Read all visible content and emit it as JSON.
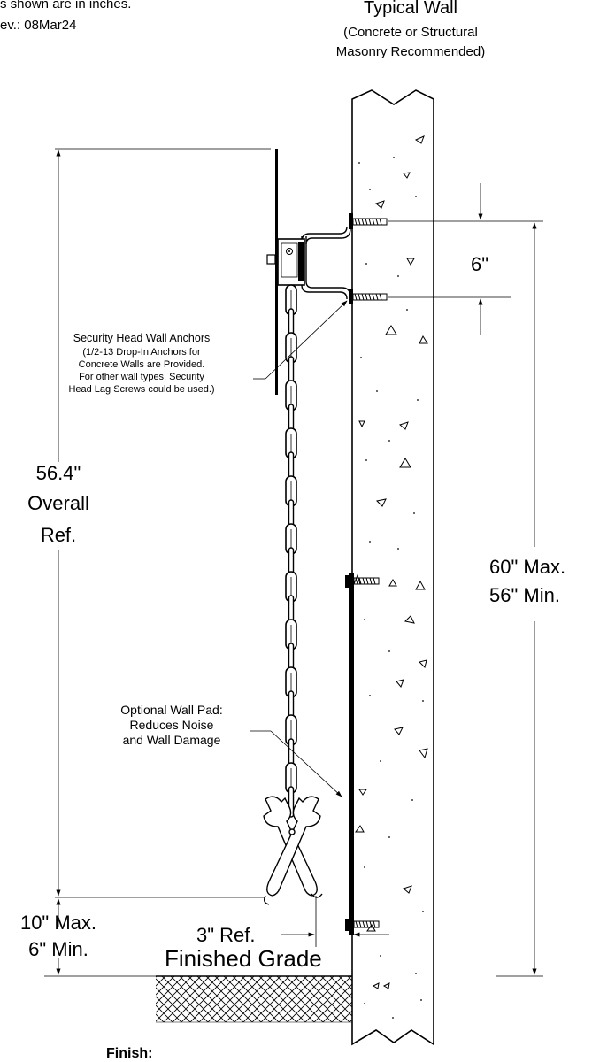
{
  "header": {
    "units_note": "s shown are in inches.",
    "revision": "ev.: 08Mar24"
  },
  "wall": {
    "title": "Typical Wall",
    "subtitle_line1": "(Concrete or Structural",
    "subtitle_line2": "Masonry Recommended)"
  },
  "dimensions": {
    "anchor_spacing": "6\"",
    "overall_value": "56.4\"",
    "overall_word": "Overall",
    "overall_ref": "Ref.",
    "mount_max": "60\" Max.",
    "mount_min": "56\" Min.",
    "ground_max": "10\" Max.",
    "ground_min": "6\" Min.",
    "offset": "3\" Ref."
  },
  "callouts": {
    "anchors_title": "Security Head Wall Anchors",
    "anchors_lines": [
      "(1/2-13 Drop-In Anchors for",
      "Concrete Walls are Provided.",
      "For other wall types, Security",
      "Head Lag Screws could be used.)"
    ],
    "pad_lines": [
      "Optional Wall Pad:",
      "Reduces Noise",
      "and Wall Damage"
    ]
  },
  "grade": {
    "label": "Finished Grade"
  },
  "footer": {
    "finish_label": "Finish:"
  }
}
